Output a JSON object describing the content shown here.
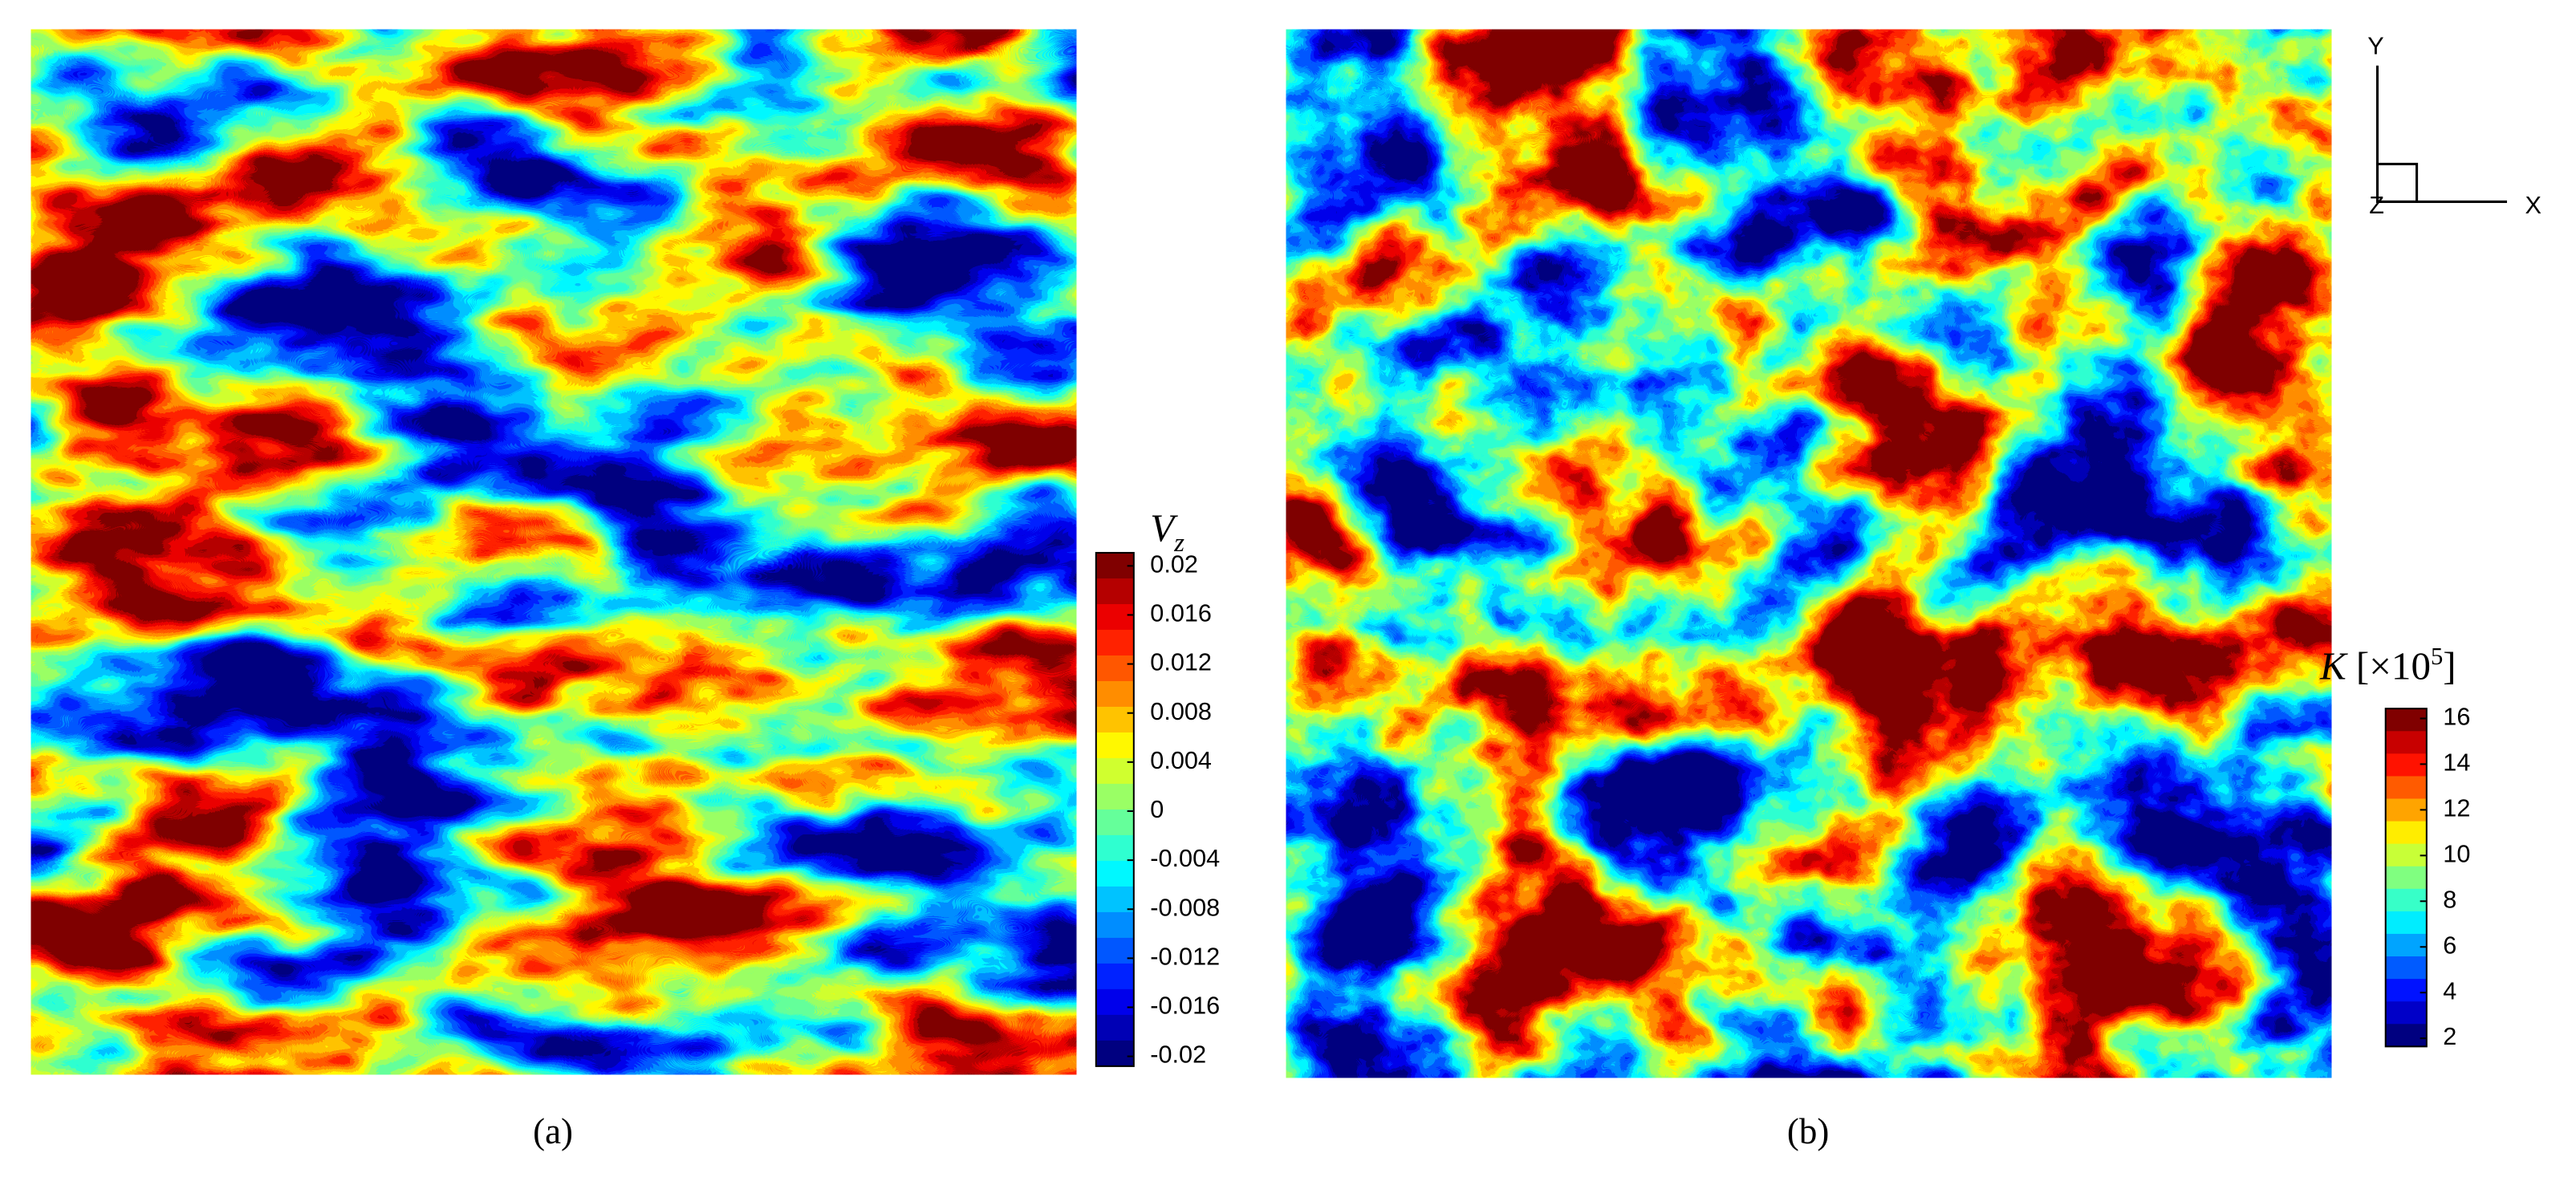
{
  "panels": [
    {
      "caption": "(a)",
      "colorbar": {
        "symbol": "V",
        "subscript": "z",
        "ticks": [
          "0.02",
          "0.016",
          "0.012",
          "0.008",
          "0.004",
          "0",
          "-0.004",
          "-0.008",
          "-0.012",
          "-0.016",
          "-0.02"
        ]
      }
    },
    {
      "caption": "(b)",
      "colorbar": {
        "symbol": "K",
        "unit": "[×10",
        "exponent": "5",
        "unit_close": "]",
        "ticks": [
          "16",
          "14",
          "12",
          "10",
          "8",
          "6",
          "4",
          "2"
        ]
      }
    }
  ],
  "triad": {
    "y": "Y",
    "x": "X",
    "z": "Z"
  }
}
